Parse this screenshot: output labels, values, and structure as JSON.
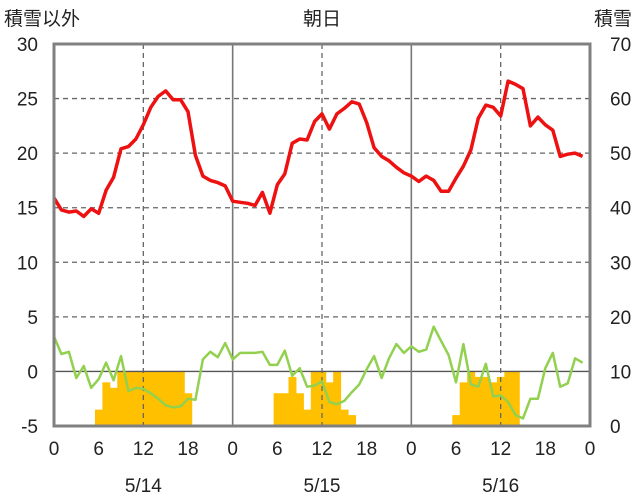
{
  "header": {
    "left_label": "積雪以外",
    "center_label": "朝日",
    "right_label": "積雪"
  },
  "chart_data": {
    "type": "line",
    "x_ticks": [
      "0",
      "6",
      "12",
      "18",
      "0",
      "6",
      "12",
      "18",
      "0",
      "6",
      "12",
      "18",
      "0"
    ],
    "x_day_labels": [
      "5/14",
      "5/15",
      "5/16"
    ],
    "y_left_ticks": [
      "30",
      "25",
      "20",
      "15",
      "10",
      "5",
      "0",
      "-5"
    ],
    "y_right_ticks": [
      "70",
      "60",
      "50",
      "40",
      "30",
      "20",
      "10",
      "0"
    ],
    "y_left_range": [
      -5,
      30
    ],
    "y_right_range": [
      0,
      70
    ],
    "x_range_hours": [
      0,
      72
    ],
    "grid": true,
    "colors": {
      "temperature": "#ee1111",
      "other": "#92d050",
      "bars": "#ffc000",
      "frame": "#808080",
      "grid": "#666666"
    },
    "series": [
      {
        "kind": "line",
        "color_key": "temperature",
        "hours": [
          0,
          1,
          2,
          3,
          4,
          5,
          6,
          7,
          8,
          9,
          10,
          11,
          12,
          13,
          14,
          15,
          16,
          17,
          18,
          19,
          20,
          21,
          22,
          23,
          24,
          25,
          26,
          27,
          28,
          29,
          30,
          31,
          32,
          33,
          34,
          35,
          36,
          37,
          38,
          39,
          40,
          41,
          42,
          43,
          44,
          45,
          46,
          47,
          48,
          49,
          50,
          51,
          52,
          53,
          54,
          55,
          56,
          57,
          58,
          59,
          60,
          61,
          62,
          63,
          64,
          65,
          66,
          67,
          68,
          69,
          70,
          71
        ],
        "values": [
          15.9,
          14.8,
          14.6,
          14.7,
          14.2,
          14.9,
          14.5,
          16.6,
          17.8,
          20.4,
          20.6,
          21.3,
          22.6,
          24.2,
          25.2,
          25.7,
          24.9,
          24.9,
          23.8,
          19.8,
          17.9,
          17.5,
          17.3,
          17.0,
          15.6,
          15.5,
          15.4,
          15.2,
          16.4,
          14.5,
          17.1,
          18.1,
          20.9,
          21.3,
          21.2,
          22.9,
          23.6,
          22.2,
          23.6,
          24.1,
          24.7,
          24.5,
          22.8,
          20.5,
          19.7,
          19.3,
          18.7,
          18.2,
          17.9,
          17.4,
          17.9,
          17.5,
          16.5,
          16.5,
          17.7,
          18.8,
          20.3,
          23.2,
          24.4,
          24.2,
          23.4,
          26.6,
          26.3,
          25.9,
          22.5,
          23.3,
          22.6,
          22.1,
          19.7,
          19.9,
          20.0,
          19.7
        ]
      },
      {
        "kind": "line",
        "color_key": "other",
        "hours": [
          0,
          1,
          2,
          3,
          4,
          5,
          6,
          7,
          8,
          9,
          10,
          11,
          12,
          13,
          14,
          15,
          16,
          17,
          18,
          19,
          20,
          21,
          22,
          23,
          24,
          25,
          26,
          27,
          28,
          29,
          30,
          31,
          32,
          33,
          34,
          35,
          36,
          37,
          38,
          39,
          40,
          41,
          42,
          43,
          44,
          45,
          46,
          47,
          48,
          49,
          50,
          51,
          52,
          53,
          54,
          55,
          56,
          57,
          58,
          59,
          60,
          61,
          62,
          63,
          64,
          65,
          66,
          67,
          68,
          69,
          70,
          71
        ],
        "values": [
          3.2,
          1.6,
          1.8,
          -0.6,
          0.5,
          -1.5,
          -0.7,
          0.8,
          -0.8,
          1.4,
          -1.8,
          -1.5,
          -1.6,
          -2.0,
          -2.5,
          -3.1,
          -3.3,
          -3.2,
          -2.5,
          -2.6,
          1.1,
          1.8,
          1.3,
          2.6,
          1.1,
          1.7,
          1.7,
          1.7,
          1.8,
          0.6,
          0.6,
          1.9,
          -0.4,
          0.3,
          -1.4,
          -1.3,
          -0.9,
          -2.8,
          -3.0,
          -2.7,
          -1.9,
          -1.2,
          0.2,
          1.4,
          -0.6,
          1.2,
          2.5,
          1.7,
          2.3,
          1.8,
          2.0,
          4.1,
          2.8,
          1.5,
          -1.0,
          2.5,
          -1.2,
          -1.4,
          0.7,
          -2.3,
          -2.2,
          -2.8,
          -4.0,
          -4.3,
          -2.5,
          -2.5,
          0.3,
          1.7,
          -1.4,
          -1.1,
          1.2,
          0.8
        ]
      },
      {
        "kind": "bar",
        "color_key": "bars",
        "hours": [
          6,
          7,
          8,
          9,
          10,
          11,
          12,
          13,
          14,
          15,
          16,
          17,
          18,
          30,
          31,
          32,
          33,
          34,
          35,
          36,
          37,
          38,
          39,
          40,
          41,
          42,
          54,
          55,
          56,
          57,
          58,
          59,
          60,
          61,
          62,
          63,
          64
        ],
        "values": [
          3,
          8,
          7,
          10,
          10,
          10,
          10,
          10,
          10,
          10,
          10,
          10,
          6,
          6,
          6,
          9,
          6,
          3,
          10,
          10,
          8,
          10,
          3,
          2,
          0,
          0,
          2,
          8,
          10,
          9,
          9,
          8,
          9,
          10,
          10,
          0,
          0
        ]
      }
    ]
  }
}
